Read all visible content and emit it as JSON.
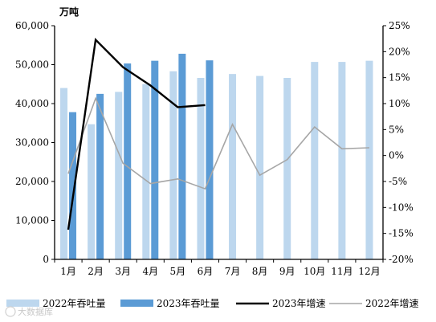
{
  "chart_data": {
    "type": "bar",
    "unit_label": "万吨",
    "categories": [
      "1月",
      "2月",
      "3月",
      "4月",
      "5月",
      "6月",
      "7月",
      "8月",
      "9月",
      "10月",
      "11月",
      "12月"
    ],
    "left_axis": {
      "min": 0,
      "max": 60000,
      "step": 10000,
      "tick_labels": [
        "0",
        "10,000",
        "20,000",
        "30,000",
        "40,000",
        "50,000",
        "60,000"
      ]
    },
    "right_axis": {
      "min": -20,
      "max": 25,
      "step": 5,
      "tick_labels": [
        "-20%",
        "-15%",
        "-10%",
        "-5%",
        "0%",
        "5%",
        "10%",
        "15%",
        "20%",
        "25%"
      ]
    },
    "series": [
      {
        "name": "2022年吞吐量",
        "kind": "bar",
        "axis": "left",
        "color": "#bdd7ee",
        "values": [
          44000,
          34700,
          43000,
          45000,
          48300,
          46600,
          47600,
          47100,
          46600,
          50700,
          50700,
          51000
        ]
      },
      {
        "name": "2023年吞吐量",
        "kind": "bar",
        "axis": "left",
        "color": "#5b9bd5",
        "values": [
          37800,
          42500,
          50300,
          51000,
          52800,
          51100,
          null,
          null,
          null,
          null,
          null,
          null
        ]
      },
      {
        "name": "2023年增速",
        "kind": "line",
        "axis": "right",
        "color": "#000000",
        "values": [
          -14.3,
          22.3,
          17.0,
          13.5,
          9.3,
          9.7,
          null,
          null,
          null,
          null,
          null,
          null
        ]
      },
      {
        "name": "2022年增速",
        "kind": "line",
        "axis": "right",
        "color": "#a6a6a6",
        "values": [
          -3.5,
          11.0,
          -1.5,
          -5.4,
          -4.5,
          -6.4,
          6.0,
          -3.8,
          -0.8,
          5.5,
          1.3,
          1.5
        ]
      }
    ],
    "legend_position": "bottom",
    "grid": false
  },
  "watermark": {
    "text": "大数据库"
  }
}
